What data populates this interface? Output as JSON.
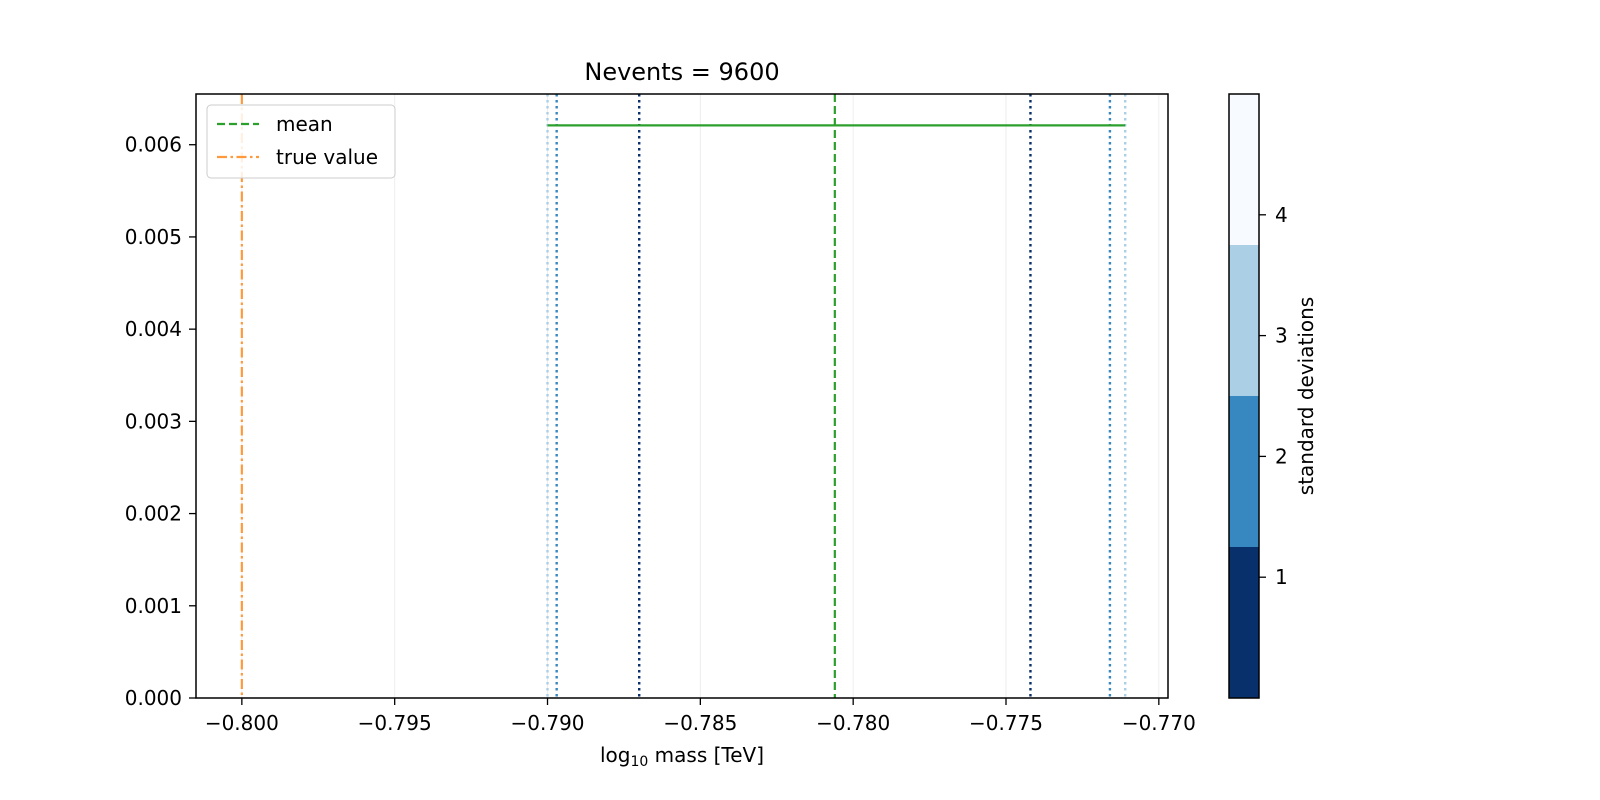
{
  "chart_data": {
    "type": "line",
    "title": "Nevents = 9600",
    "xlabel": {
      "base": "log",
      "sub": "10",
      "rest": " mass [TeV]"
    },
    "ylabel": "",
    "xlim": [
      -0.8015,
      -0.7697
    ],
    "ylim": [
      0.0,
      0.00655
    ],
    "x_ticks": [
      -0.8,
      -0.795,
      -0.79,
      -0.785,
      -0.78,
      -0.775,
      -0.77
    ],
    "x_tick_labels": [
      "−0.800",
      "−0.795",
      "−0.790",
      "−0.785",
      "−0.780",
      "−0.775",
      "−0.770"
    ],
    "y_ticks": [
      0.0,
      0.001,
      0.002,
      0.003,
      0.004,
      0.005,
      0.006
    ],
    "y_tick_labels": [
      "0.000",
      "0.001",
      "0.002",
      "0.003",
      "0.004",
      "0.005",
      "0.006"
    ],
    "grid": "vertical",
    "legend": {
      "placement": "top-left",
      "entries": [
        {
          "label": "mean",
          "color": "#2ca02c",
          "style": "dashed"
        },
        {
          "label": "true value",
          "color": "#ff9a3c",
          "style": "dashdot"
        }
      ]
    },
    "mean": {
      "x": -0.7806,
      "color": "#2ca02c"
    },
    "true_value": {
      "x": -0.8,
      "color": "#ff9a3c"
    },
    "sigma_range_line": {
      "x1": -0.79,
      "x2": -0.7711,
      "y": 0.00621,
      "color": "#2ca02c"
    },
    "sigma_lines": [
      {
        "sigma": 1,
        "x": -0.787,
        "color": "#08306b"
      },
      {
        "sigma": 1,
        "x": -0.7742,
        "color": "#08306b"
      },
      {
        "sigma": 2,
        "x": -0.7897,
        "color": "#3787c0"
      },
      {
        "sigma": 2,
        "x": -0.7716,
        "color": "#3787c0"
      },
      {
        "sigma": 3,
        "x": -0.79,
        "color": "#abd0e6"
      },
      {
        "sigma": 3,
        "x": -0.7711,
        "color": "#abd0e6"
      }
    ],
    "colorbar": {
      "label": "standard deviations",
      "range": [
        0,
        5
      ],
      "ticks": [
        1,
        2,
        3,
        4
      ],
      "tick_labels": [
        "1",
        "2",
        "3",
        "4"
      ],
      "bands": [
        {
          "from": 0,
          "to": 1.25,
          "color": "#08306b"
        },
        {
          "from": 1.25,
          "to": 2.5,
          "color": "#3787c0"
        },
        {
          "from": 2.5,
          "to": 3.75,
          "color": "#abd0e6"
        },
        {
          "from": 3.75,
          "to": 5,
          "color": "#f7fbff"
        }
      ]
    }
  }
}
